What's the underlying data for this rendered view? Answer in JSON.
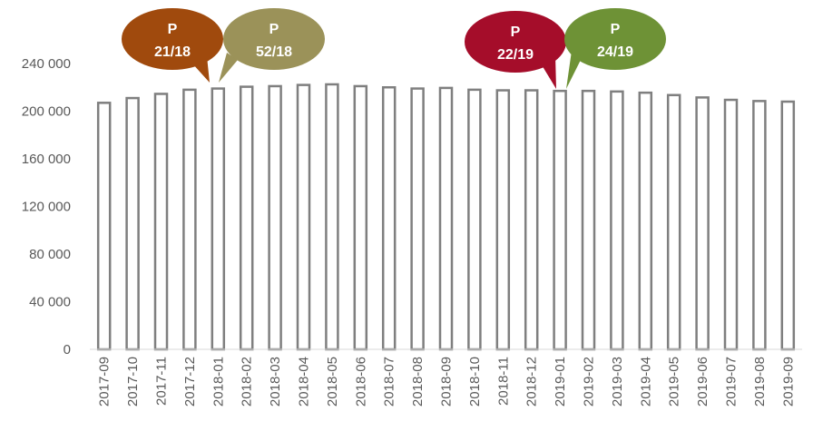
{
  "chart_data": {
    "type": "bar",
    "title": "",
    "xlabel": "",
    "ylabel": "",
    "ylim": [
      0,
      240000
    ],
    "yticks": [
      0,
      40000,
      80000,
      120000,
      160000,
      200000,
      240000
    ],
    "ytick_labels": [
      "0",
      "40 000",
      "80 000",
      "120 000",
      "160 000",
      "200 000",
      "240 000"
    ],
    "grid": false,
    "legend": "none",
    "bar_fill": "#ffffff",
    "bar_stroke": "#7f7f7f",
    "categories": [
      "2017-09",
      "2017-10",
      "2017-11",
      "2017-12",
      "2018-01",
      "2018-02",
      "2018-03",
      "2018-04",
      "2018-05",
      "2018-06",
      "2018-07",
      "2018-08",
      "2018-09",
      "2018-10",
      "2018-11",
      "2018-12",
      "2019-01",
      "2019-02",
      "2019-03",
      "2019-04",
      "2019-05",
      "2019-06",
      "2019-07",
      "2019-08",
      "2019-09"
    ],
    "values": [
      207000,
      211000,
      214500,
      218000,
      219000,
      220500,
      221000,
      222000,
      222500,
      221000,
      220000,
      219000,
      219500,
      218000,
      217500,
      217500,
      217000,
      217000,
      216500,
      215500,
      213500,
      211500,
      209500,
      208500,
      208000
    ],
    "annotations": [
      {
        "line1": "P",
        "line2": "21/18",
        "color": "#a04a0d",
        "points_to": "2018-01"
      },
      {
        "line1": "P",
        "line2": "52/18",
        "color": "#9b9259",
        "points_to": "2018-01"
      },
      {
        "line1": "P",
        "line2": "22/19",
        "color": "#a50d2a",
        "points_to": "2019-01"
      },
      {
        "line1": "P",
        "line2": "24/19",
        "color": "#6e9236",
        "points_to": "2019-01"
      }
    ]
  }
}
